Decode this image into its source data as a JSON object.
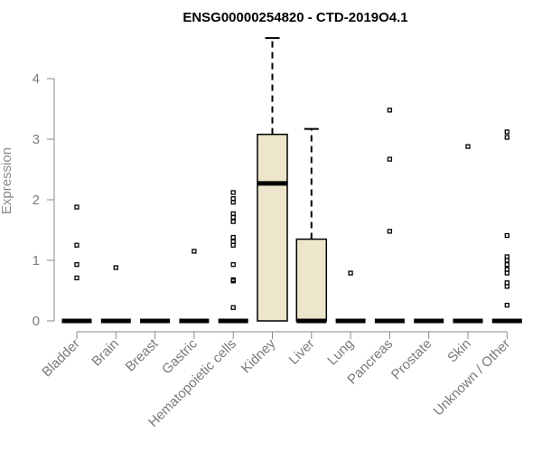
{
  "chart_data": {
    "type": "box",
    "title": "ENSG00000254820 - CTD-2019O4.1",
    "ylabel": "Expression",
    "xlabel": "",
    "ylim": [
      0,
      4.6
    ],
    "yticks": [
      0,
      1,
      2,
      3,
      4
    ],
    "box_fill": "#ede5cc",
    "stroke_color": "#000000",
    "axis_color": "#8a8a8a",
    "categories": [
      "Bladder",
      "Brain",
      "Breast",
      "Gastric",
      "Hematopoietic cells",
      "Kidney",
      "Liver",
      "Lung",
      "Pancreas",
      "Prostate",
      "Skin",
      "Unknown / Other"
    ],
    "boxes": [
      {
        "q1": 0,
        "median": 0,
        "q3": 0,
        "whisker_low": 0,
        "whisker_high": 0,
        "outliers": [
          1.88,
          1.25,
          0.93,
          0.71
        ]
      },
      {
        "q1": 0,
        "median": 0,
        "q3": 0,
        "whisker_low": 0,
        "whisker_high": 0,
        "outliers": [
          0.88
        ]
      },
      {
        "q1": 0,
        "median": 0,
        "q3": 0,
        "whisker_low": 0,
        "whisker_high": 0,
        "outliers": []
      },
      {
        "q1": 0,
        "median": 0,
        "q3": 0,
        "whisker_low": 0,
        "whisker_high": 0,
        "outliers": [
          1.15
        ]
      },
      {
        "q1": 0,
        "median": 0,
        "q3": 0,
        "whisker_low": 0,
        "whisker_high": 0,
        "outliers": [
          2.12,
          2.02,
          1.96,
          1.77,
          1.71,
          1.64,
          1.38,
          1.31,
          1.25,
          0.93,
          0.68,
          0.66,
          0.22
        ]
      },
      {
        "q1": 0,
        "median": 2.27,
        "q3": 3.08,
        "whisker_low": 0,
        "whisker_high": 4.67,
        "outliers": []
      },
      {
        "q1": 0,
        "median": 0,
        "q3": 1.35,
        "whisker_low": 0,
        "whisker_high": 3.17,
        "outliers": []
      },
      {
        "q1": 0,
        "median": 0,
        "q3": 0,
        "whisker_low": 0,
        "whisker_high": 0,
        "outliers": [
          0.79
        ]
      },
      {
        "q1": 0,
        "median": 0,
        "q3": 0,
        "whisker_low": 0,
        "whisker_high": 0,
        "outliers": [
          3.48,
          2.67,
          1.48
        ]
      },
      {
        "q1": 0,
        "median": 0,
        "q3": 0,
        "whisker_low": 0,
        "whisker_high": 0,
        "outliers": []
      },
      {
        "q1": 0,
        "median": 0,
        "q3": 0,
        "whisker_low": 0,
        "whisker_high": 0,
        "outliers": [
          2.88
        ]
      },
      {
        "q1": 0,
        "median": 0,
        "q3": 0,
        "whisker_low": 0,
        "whisker_high": 0,
        "outliers": [
          3.12,
          3.03,
          1.41,
          1.06,
          1.0,
          0.93,
          0.85,
          0.79,
          0.63,
          0.57,
          0.26
        ]
      }
    ]
  }
}
